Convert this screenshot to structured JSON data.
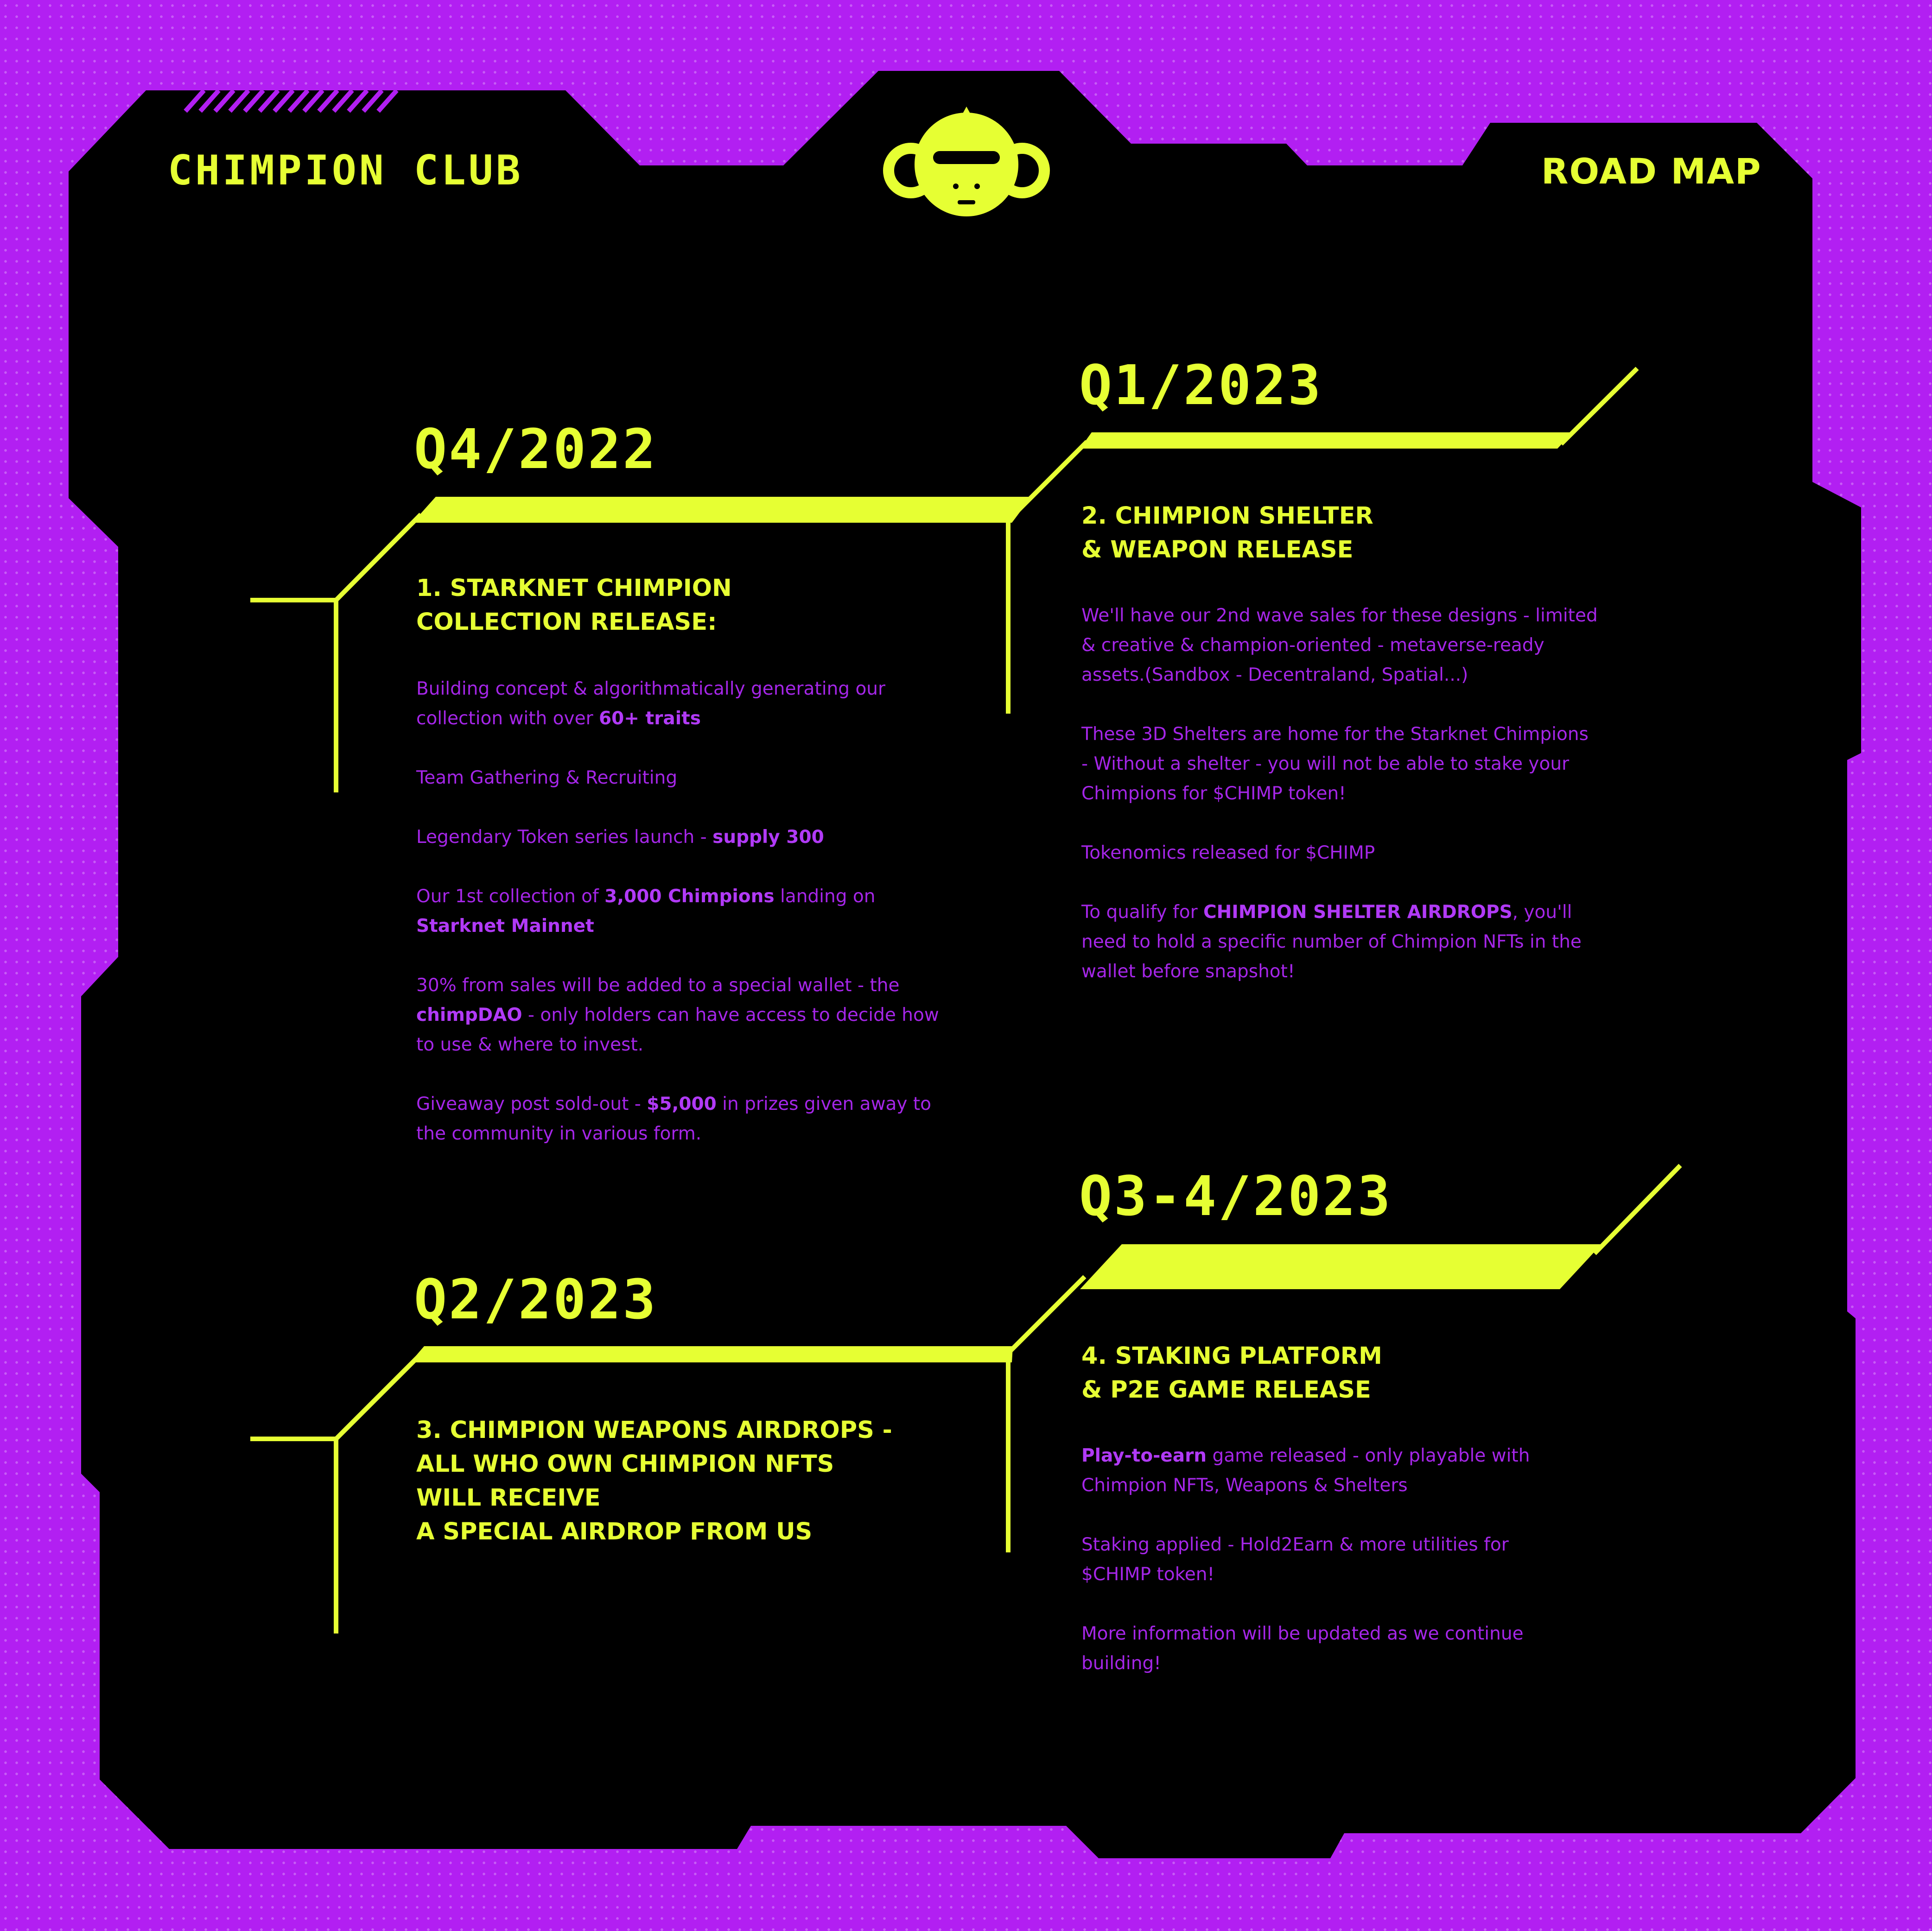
{
  "header": {
    "brand": "CHIMPION CLUB",
    "page_title": "ROAD MAP",
    "logo_icon": "chimp-head-icon"
  },
  "colors": {
    "background": "#b21ff2",
    "panel": "#000000",
    "accent": "#e6ff33",
    "body_text": "#a526e8"
  },
  "phases": [
    {
      "quarter": "Q4/2022",
      "heading": [
        "1. STARKNET CHIMPION",
        "COLLECTION RELEASE:"
      ],
      "items": [
        [
          {
            "t": "Building concept & algorithmatically generating our collection with over "
          },
          {
            "t": "60+ traits",
            "b": true
          }
        ],
        [
          {
            "t": "Team Gathering & Recruiting"
          }
        ],
        [
          {
            "t": "Legendary Token series launch - "
          },
          {
            "t": "supply 300",
            "b": true
          }
        ],
        [
          {
            "t": "Our 1st collection of "
          },
          {
            "t": "3,000 Chimpions",
            "b": true
          },
          {
            "t": " landing on "
          },
          {
            "t": "Starknet Mainnet",
            "b": true
          }
        ],
        [
          {
            "t": "30% from sales will be added to a special wallet - the "
          },
          {
            "t": "chimpDAO",
            "b": true
          },
          {
            "t": " - only holders can have access to decide how to use & where to invest."
          }
        ],
        [
          {
            "t": "Giveaway post sold-out - "
          },
          {
            "t": "$5,000",
            "b": true
          },
          {
            "t": " in prizes given away to the community in various form."
          }
        ]
      ]
    },
    {
      "quarter": "Q1/2023",
      "heading": [
        "2. CHIMPION SHELTER",
        "& WEAPON RELEASE"
      ],
      "items": [
        [
          {
            "t": "We'll have our 2nd wave sales for these designs - limited & creative & champion-oriented - metaverse-ready assets.(Sandbox - Decentraland, Spatial...)"
          }
        ],
        [
          {
            "t": "These 3D Shelters are home for the Starknet Chimpions - Without a shelter - you will not be able to stake your Chimpions for $CHIMP token!"
          }
        ],
        [
          {
            "t": "Tokenomics released for $CHIMP"
          }
        ],
        [
          {
            "t": "To qualify for "
          },
          {
            "t": "CHIMPION SHELTER AIRDROPS",
            "b": true
          },
          {
            "t": ", you'll need to hold a specific number of Chimpion NFTs in the wallet before snapshot!"
          }
        ]
      ]
    },
    {
      "quarter": "Q2/2023",
      "heading": [
        "3. CHIMPION WEAPONS AIRDROPS -",
        "ALL WHO OWN CHIMPION NFTS",
        "WILL RECEIVE",
        "A SPECIAL AIRDROP FROM US"
      ],
      "items": []
    },
    {
      "quarter": "Q3-4/2023",
      "heading": [
        "4. STAKING PLATFORM",
        "& P2E GAME RELEASE"
      ],
      "items": [
        [
          {
            "t": "Play-to-earn",
            "b": true
          },
          {
            "t": " game released - only playable with Chimpion NFTs, Weapons & Shelters"
          }
        ],
        [
          {
            "t": "Staking applied - Hold2Earn & more utilities for $CHIMP token!"
          }
        ],
        [
          {
            "t": "More information will be updated as we continue building!"
          }
        ]
      ]
    }
  ]
}
